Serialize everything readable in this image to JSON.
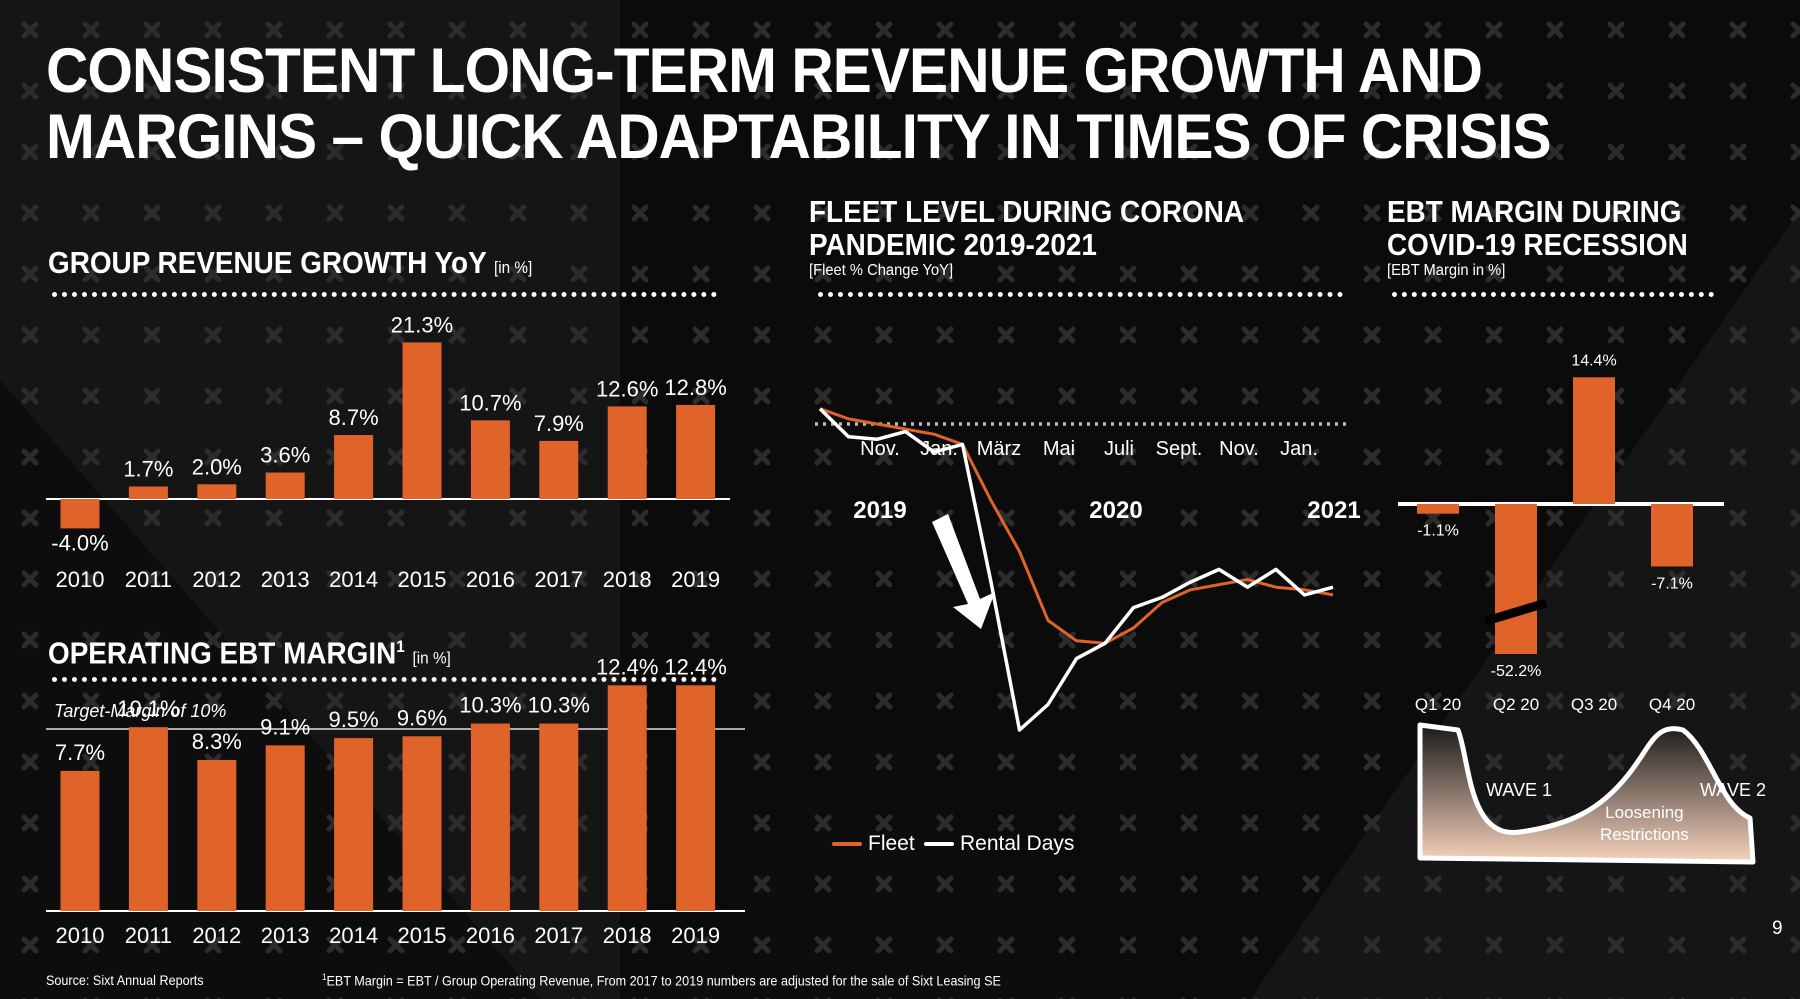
{
  "title_lines": [
    "CONSISTENT LONG-TERM REVENUE GROWTH AND",
    "MARGINS – QUICK ADAPTABILITY IN TIMES OF CRISIS"
  ],
  "page_number": "9",
  "footer": {
    "source": "Source: Sixt Annual Reports",
    "note_mark": "1",
    "note": "EBT Margin = EBT / Group Operating Revenue, From 2017 to 2019 numbers are adjusted for the sale of Sixt Leasing SE"
  },
  "colors": {
    "accent": "#e0642a",
    "line_white": "#ffffff",
    "background": "#151515"
  },
  "sections": {
    "revenue": {
      "title": "GROUP REVENUE GROWTH YoY",
      "unit": "[in %]"
    },
    "ebt": {
      "title": "OPERATING EBT MARGIN",
      "superscript": "1",
      "unit": "[in %]",
      "target_label": "Target-Margin of 10%"
    },
    "fleet": {
      "title_lines": [
        "FLEET LEVEL DURING CORONA",
        "PANDEMIC 2019-2021"
      ],
      "subtitle": "[Fleet % Change YoY]"
    },
    "covid": {
      "title_lines": [
        "EBT MARGIN DURING",
        "COVID-19 RECESSION"
      ],
      "subtitle": "[EBT Margin in %]"
    }
  },
  "chart_data": [
    {
      "id": "revenue_growth",
      "type": "bar",
      "title": "GROUP REVENUE GROWTH YoY",
      "categories": [
        "2010",
        "2011",
        "2012",
        "2013",
        "2014",
        "2015",
        "2016",
        "2017",
        "2018",
        "2019"
      ],
      "values": [
        -4.0,
        1.7,
        2.0,
        3.6,
        8.7,
        21.3,
        10.7,
        7.9,
        12.6,
        12.8
      ],
      "labels": [
        "-4.0%",
        "1.7%",
        "2.0%",
        "3.6%",
        "8.7%",
        "21.3%",
        "10.7%",
        "7.9%",
        "12.6%",
        "12.8%"
      ],
      "unit": "%"
    },
    {
      "id": "ebt_margin",
      "type": "bar",
      "title": "OPERATING EBT MARGIN",
      "categories": [
        "2010",
        "2011",
        "2012",
        "2013",
        "2014",
        "2015",
        "2016",
        "2017",
        "2018",
        "2019"
      ],
      "values": [
        7.7,
        10.1,
        8.3,
        9.1,
        9.5,
        9.6,
        10.3,
        10.3,
        12.4,
        12.4
      ],
      "labels": [
        "7.7%",
        "10.1%",
        "8.3%",
        "9.1%",
        "9.5%",
        "9.6%",
        "10.3%",
        "10.3%",
        "12.4%",
        "12.4%"
      ],
      "target": 10,
      "unit": "%"
    },
    {
      "id": "fleet_level",
      "type": "line",
      "title": "FLEET LEVEL DURING CORONA PANDEMIC 2019-2021",
      "x_ticks": [
        "Nov.",
        "Jan.",
        "März",
        "Mai",
        "Juli",
        "Sept.",
        "Nov.",
        "Jan."
      ],
      "year_labels": [
        "2019",
        "2020",
        "2021"
      ],
      "series": [
        {
          "name": "Fleet",
          "color": "#e0642a",
          "values": [
            6,
            2,
            0,
            -2,
            -4,
            -8,
            -30,
            -50,
            -77,
            -85,
            -86,
            -80,
            -70,
            -65,
            -63,
            -61,
            -64,
            -65,
            -67
          ]
        },
        {
          "name": "Rental Days",
          "color": "#ffffff",
          "values": [
            6,
            -5,
            -6,
            -3,
            -11,
            -8,
            -62,
            -120,
            -110,
            -92,
            -86,
            -72,
            -68,
            -62,
            -57,
            -64,
            -57,
            -67,
            -64
          ]
        }
      ]
    },
    {
      "id": "covid_ebt",
      "type": "bar",
      "title": "EBT MARGIN DURING COVID-19 RECESSION",
      "categories": [
        "Q1 20",
        "Q2 20",
        "Q3 20",
        "Q4 20"
      ],
      "values": [
        -1.1,
        -52.2,
        14.4,
        -7.1
      ],
      "labels": [
        "-1.1%",
        "-52.2%",
        "14.4%",
        "-7.1%"
      ],
      "unit": "%"
    }
  ],
  "waves": {
    "wave1": "WAVE 1",
    "wave2": "WAVE 2",
    "loosening_lines": [
      "Loosening",
      "Restrictions"
    ]
  }
}
